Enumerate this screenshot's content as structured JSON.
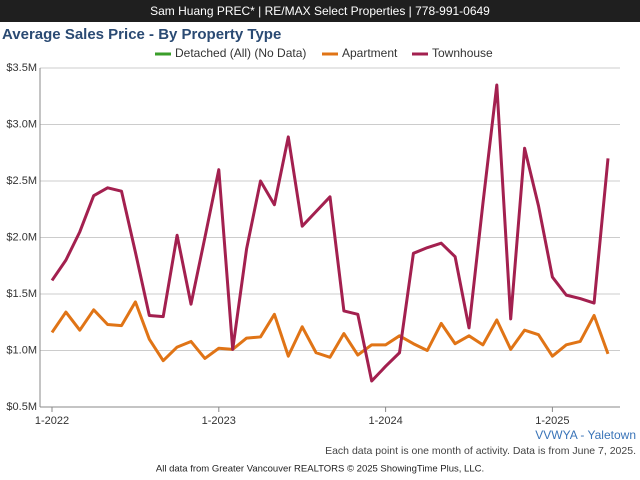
{
  "banner": "Sam Huang PREC* | RE/MAX Select Properties | 778-991-0649",
  "chart_data": {
    "type": "line",
    "title": "Average Sales Price - By Property Type",
    "categories": [
      "1-2022",
      null,
      null,
      null,
      null,
      null,
      null,
      null,
      null,
      null,
      null,
      null,
      "1-2023",
      null,
      null,
      null,
      null,
      null,
      null,
      null,
      null,
      null,
      null,
      null,
      "1-2024",
      null,
      null,
      null,
      null,
      null,
      null,
      null,
      null,
      null,
      null,
      null,
      "1-2025",
      null,
      null,
      null,
      null
    ],
    "series": [
      {
        "name": "Detached (All) (No Data)",
        "color": "#3a9e2a",
        "values": [
          null,
          null,
          null,
          null,
          null,
          null,
          null,
          null,
          null,
          null,
          null,
          null,
          null,
          null,
          null,
          null,
          null,
          null,
          null,
          null,
          null,
          null,
          null,
          null,
          null,
          null,
          null,
          null,
          null,
          null,
          null,
          null,
          null,
          null,
          null,
          null,
          null,
          null,
          null,
          null,
          null
        ]
      },
      {
        "name": "Apartment",
        "color": "#e07416",
        "values": [
          1.16,
          1.34,
          1.18,
          1.36,
          1.23,
          1.22,
          1.43,
          1.1,
          0.91,
          1.03,
          1.08,
          0.93,
          1.02,
          1.01,
          1.11,
          1.12,
          1.32,
          0.95,
          1.21,
          0.98,
          0.94,
          1.15,
          0.96,
          1.05,
          1.05,
          1.13,
          1.06,
          1.0,
          1.24,
          1.06,
          1.13,
          1.05,
          1.27,
          1.01,
          1.18,
          1.14,
          0.95,
          1.05,
          1.08,
          1.31,
          0.97
        ]
      },
      {
        "name": "Townhouse",
        "color": "#a3204f",
        "values": [
          1.62,
          1.8,
          2.05,
          2.37,
          2.44,
          2.41,
          1.87,
          1.31,
          1.3,
          2.02,
          1.41,
          2.0,
          2.6,
          1.01,
          1.9,
          2.5,
          2.29,
          2.89,
          2.1,
          2.23,
          2.36,
          1.35,
          1.32,
          0.73,
          0.86,
          0.98,
          1.86,
          1.91,
          1.95,
          1.83,
          1.2,
          2.3,
          3.35,
          1.28,
          2.79,
          2.28,
          1.65,
          1.49,
          1.46,
          1.42,
          2.7
        ]
      }
    ],
    "ylim": [
      0.5,
      3.5
    ],
    "yticks": [
      {
        "value": 0.5,
        "label": "$0.5M"
      },
      {
        "value": 1.0,
        "label": "$1.0M"
      },
      {
        "value": 1.5,
        "label": "$1.5M"
      },
      {
        "value": 2.0,
        "label": "$2.0M"
      },
      {
        "value": 2.5,
        "label": "$2.5M"
      },
      {
        "value": 3.0,
        "label": "$3.0M"
      },
      {
        "value": 3.5,
        "label": "$3.5M"
      }
    ],
    "grid": true,
    "legend": "top",
    "annotations": [
      "VVWYA - Yaletown",
      "Each data point is one month of activity. Data is from June 7, 2025."
    ]
  },
  "footer": "All data from Greater Vancouver REALTORS © 2025 ShowingTime Plus, LLC."
}
